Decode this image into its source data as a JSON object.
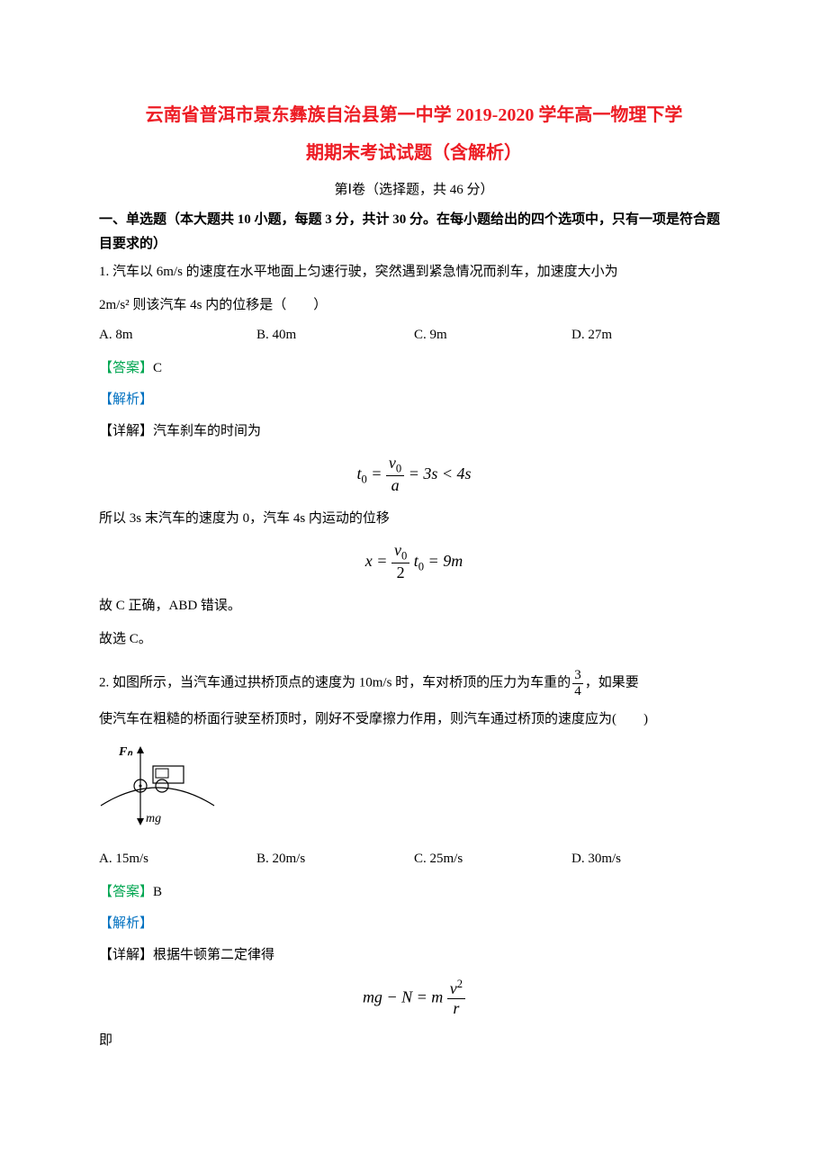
{
  "title_line1": "云南省普洱市景东彝族自治县第一中学 2019-2020 学年高一物理下学",
  "title_line2": "期期末考试试题（含解析）",
  "section_header": "第Ⅰ卷（选择题，共 46 分）",
  "instructions": "一、单选题（本大题共 10 小题，每题 3 分，共计 30 分。在每小题给出的四个选项中，只有一项是符合题目要求的）",
  "q1": {
    "text_line1": "1.  汽车以 6m/s 的速度在水平地面上匀速行驶，突然遇到紧急情况而刹车，加速度大小为",
    "text_line2": "2m/s² 则该汽车 4s 内的位移是（　　）",
    "options": {
      "A": "A.  8m",
      "B": "B.  40m",
      "C": "C.  9m",
      "D": "D.  27m"
    },
    "answer_label": "【答案】",
    "answer_value": "C",
    "analysis_label": "【解析】",
    "detail_label": "【详解】汽车刹车的时间为",
    "eq1_html": "<i>t</i><sub>0</sub> = <span class='frac'><span class='num'><i>v</i><sub>0</sub></span><span class='den'><i>a</i></span></span> = 3s &lt; 4s",
    "mid_text": "所以 3s 末汽车的速度为 0，汽车 4s 内运动的位移",
    "eq2_html": "<i>x</i> = <span class='frac'><span class='num'><i>v</i><sub>0</sub></span><span class='den'>2</span></span> <i>t</i><sub>0</sub> = 9m",
    "conclusion1": "故 C 正确，ABD 错误。",
    "conclusion2": "故选 C。"
  },
  "q2": {
    "text_part1": "2.  如图所示，当汽车通过拱桥顶点的速度为 10m/s 时，车对桥顶的压力为车重的",
    "frac_num": "3",
    "frac_den": "4",
    "text_part2": "，如果要",
    "text_line2": "使汽车在粗糙的桥面行驶至桥顶时，刚好不受摩擦力作用，则汽车通过桥顶的速度应为(　　)",
    "diagram_labels": {
      "FN": "Fₙ",
      "mg": "mg"
    },
    "options": {
      "A": "A.  15m/s",
      "B": "B.  20m/s",
      "C": "C.  25m/s",
      "D": "D.  30m/s"
    },
    "answer_label": "【答案】",
    "answer_value": "B",
    "analysis_label": "【解析】",
    "detail_label": "【详解】根据牛顿第二定律得",
    "eq1_html": "<i>mg</i> − <i>N</i> = <i>m</i> <span class='frac'><span class='num'><i>v</i><sup>2</sup></span><span class='den'><i>r</i></span></span>",
    "tail": "即"
  },
  "colors": {
    "title": "#ed1c24",
    "answer": "#00a651",
    "analysis": "#0070c0",
    "body": "#000000",
    "background": "#ffffff"
  }
}
